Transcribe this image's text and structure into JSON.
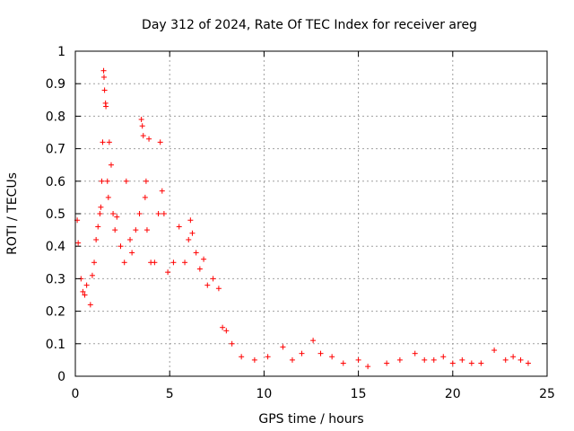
{
  "chart_data": {
    "type": "scatter",
    "title": "Day 312 of 2024, Rate Of TEC Index for receiver areg",
    "xlabel": "GPS time / hours",
    "ylabel": "ROTI / TECUs",
    "xlim": [
      0,
      25
    ],
    "ylim": [
      0,
      1
    ],
    "xticks": [
      0,
      5,
      10,
      15,
      20,
      25
    ],
    "yticks": [
      0,
      0.1,
      0.2,
      0.3,
      0.4,
      0.5,
      0.6,
      0.7,
      0.8,
      0.9,
      1
    ],
    "ytick_labels": [
      "0",
      "0.1",
      "0.2",
      "0.3",
      "0.4",
      "0.5",
      "0.6",
      "0.7",
      "0.8",
      "0.9",
      "1"
    ],
    "grid": true,
    "marker": "+",
    "color": "#ff0000",
    "series": [
      {
        "values": [
          [
            0.1,
            0.48
          ],
          [
            0.15,
            0.41
          ],
          [
            0.3,
            0.3
          ],
          [
            0.4,
            0.26
          ],
          [
            0.5,
            0.25
          ],
          [
            0.6,
            0.28
          ],
          [
            0.8,
            0.22
          ],
          [
            0.9,
            0.31
          ],
          [
            1.0,
            0.35
          ],
          [
            1.1,
            0.42
          ],
          [
            1.2,
            0.46
          ],
          [
            1.3,
            0.5
          ],
          [
            1.35,
            0.52
          ],
          [
            1.4,
            0.6
          ],
          [
            1.45,
            0.72
          ],
          [
            1.5,
            0.94
          ],
          [
            1.52,
            0.92
          ],
          [
            1.55,
            0.88
          ],
          [
            1.6,
            0.84
          ],
          [
            1.62,
            0.83
          ],
          [
            1.7,
            0.6
          ],
          [
            1.75,
            0.55
          ],
          [
            1.8,
            0.72
          ],
          [
            1.9,
            0.65
          ],
          [
            2.0,
            0.5
          ],
          [
            2.1,
            0.45
          ],
          [
            2.2,
            0.49
          ],
          [
            2.4,
            0.4
          ],
          [
            2.6,
            0.35
          ],
          [
            2.7,
            0.6
          ],
          [
            2.9,
            0.42
          ],
          [
            3.0,
            0.38
          ],
          [
            3.2,
            0.45
          ],
          [
            3.4,
            0.5
          ],
          [
            3.5,
            0.79
          ],
          [
            3.55,
            0.77
          ],
          [
            3.6,
            0.74
          ],
          [
            3.7,
            0.55
          ],
          [
            3.75,
            0.6
          ],
          [
            3.8,
            0.45
          ],
          [
            3.9,
            0.73
          ],
          [
            4.0,
            0.35
          ],
          [
            4.2,
            0.35
          ],
          [
            4.4,
            0.5
          ],
          [
            4.5,
            0.72
          ],
          [
            4.6,
            0.57
          ],
          [
            4.7,
            0.5
          ],
          [
            4.9,
            0.32
          ],
          [
            5.2,
            0.35
          ],
          [
            5.5,
            0.46
          ],
          [
            5.8,
            0.35
          ],
          [
            6.0,
            0.42
          ],
          [
            6.1,
            0.48
          ],
          [
            6.2,
            0.44
          ],
          [
            6.4,
            0.38
          ],
          [
            6.6,
            0.33
          ],
          [
            6.8,
            0.36
          ],
          [
            7.0,
            0.28
          ],
          [
            7.3,
            0.3
          ],
          [
            7.6,
            0.27
          ],
          [
            7.8,
            0.15
          ],
          [
            8.0,
            0.14
          ],
          [
            8.3,
            0.1
          ],
          [
            8.8,
            0.06
          ],
          [
            9.5,
            0.05
          ],
          [
            10.2,
            0.06
          ],
          [
            11.0,
            0.09
          ],
          [
            11.5,
            0.05
          ],
          [
            12.0,
            0.07
          ],
          [
            12.6,
            0.11
          ],
          [
            13.0,
            0.07
          ],
          [
            13.6,
            0.06
          ],
          [
            14.2,
            0.04
          ],
          [
            15.0,
            0.05
          ],
          [
            15.5,
            0.03
          ],
          [
            16.5,
            0.04
          ],
          [
            17.2,
            0.05
          ],
          [
            18.0,
            0.07
          ],
          [
            18.5,
            0.05
          ],
          [
            19.0,
            0.05
          ],
          [
            19.5,
            0.06
          ],
          [
            20.0,
            0.04
          ],
          [
            20.5,
            0.05
          ],
          [
            21.0,
            0.04
          ],
          [
            21.5,
            0.04
          ],
          [
            22.2,
            0.08
          ],
          [
            22.8,
            0.05
          ],
          [
            23.2,
            0.06
          ],
          [
            23.6,
            0.05
          ],
          [
            24.0,
            0.04
          ]
        ]
      }
    ]
  }
}
